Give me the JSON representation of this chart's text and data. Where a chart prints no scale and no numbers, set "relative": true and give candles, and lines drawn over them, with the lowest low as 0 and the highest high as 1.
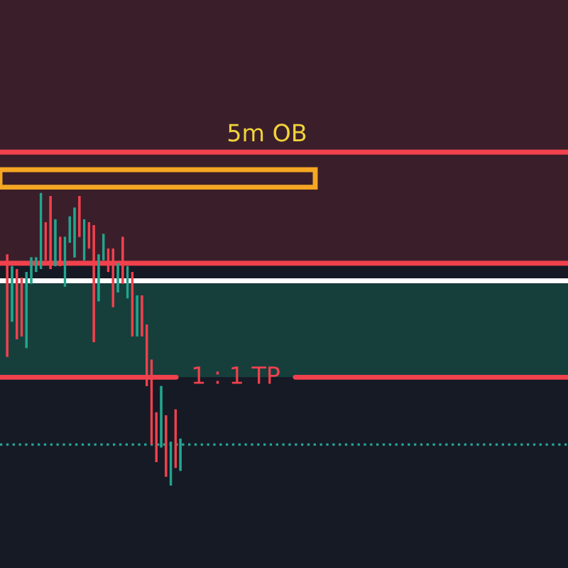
{
  "chart_data": {
    "type": "candlestick",
    "relative": true,
    "categories": [
      null,
      null,
      null,
      null,
      null,
      null,
      null,
      null,
      null,
      null,
      null,
      null,
      null,
      null,
      null,
      null,
      null,
      null,
      null,
      null,
      null,
      null,
      null,
      null,
      null,
      null,
      null,
      null,
      null,
      null,
      null,
      null,
      null,
      null,
      null,
      null,
      null
    ],
    "colors": [
      "#f0414d",
      "#22a68e",
      "#f0414d",
      "#f0414d",
      "#22a68e",
      "#22a68e",
      "#22a68e",
      "#22a68e",
      "#f0414d",
      "#f0414d",
      "#22a68e",
      "#f0414d",
      "#22a68e",
      "#22a68e",
      "#22a68e",
      "#f0414d",
      "#22a68e",
      "#f0414d",
      "#f0414d",
      "#22a68e",
      "#22a68e",
      "#f0414d",
      "#f0414d",
      "#22a68e",
      "#f0414d",
      "#22a68e",
      "#f0414d",
      "#22a68e",
      "#f0414d",
      "#f0414d",
      "#f0414d",
      "#f0414d",
      "#22a68e",
      "#f0414d",
      "#22a68e",
      "#f0414d",
      "#22a68e"
    ],
    "ohlc": [
      [
        0.79,
        0.79,
        0.44,
        0.44
      ],
      [
        0.56,
        0.75,
        0.56,
        0.75
      ],
      [
        0.74,
        0.74,
        0.5,
        0.5
      ],
      [
        0.71,
        0.71,
        0.51,
        0.51
      ],
      [
        0.47,
        0.73,
        0.47,
        0.73
      ],
      [
        0.69,
        0.78,
        0.69,
        0.78
      ],
      [
        0.73,
        0.78,
        0.73,
        0.78
      ],
      [
        0.74,
        1.0,
        0.74,
        1.0
      ],
      [
        0.9,
        0.9,
        0.77,
        0.77
      ],
      [
        0.99,
        0.99,
        0.74,
        0.74
      ],
      [
        0.75,
        0.91,
        0.75,
        0.91
      ],
      [
        0.85,
        0.85,
        0.75,
        0.75
      ],
      [
        0.68,
        0.85,
        0.68,
        0.85
      ],
      [
        0.83,
        0.92,
        0.83,
        0.92
      ],
      [
        0.78,
        0.95,
        0.78,
        0.95
      ],
      [
        0.99,
        0.99,
        0.85,
        0.85
      ],
      [
        0.77,
        0.91,
        0.77,
        0.91
      ],
      [
        0.9,
        0.9,
        0.81,
        0.81
      ],
      [
        0.89,
        0.89,
        0.49,
        0.49
      ],
      [
        0.63,
        0.79,
        0.63,
        0.79
      ],
      [
        0.77,
        0.86,
        0.77,
        0.86
      ],
      [
        0.81,
        0.81,
        0.73,
        0.73
      ],
      [
        0.81,
        0.81,
        0.61,
        0.61
      ],
      [
        0.66,
        0.76,
        0.66,
        0.76
      ],
      [
        0.85,
        0.85,
        0.69,
        0.69
      ],
      [
        0.64,
        0.75,
        0.64,
        0.75
      ],
      [
        0.73,
        0.73,
        0.51,
        0.51
      ],
      [
        0.51,
        0.65,
        0.51,
        0.65
      ],
      [
        0.65,
        0.65,
        0.51,
        0.51
      ],
      [
        0.55,
        0.55,
        0.34,
        0.34
      ],
      [
        0.43,
        0.43,
        0.14,
        0.14
      ],
      [
        0.25,
        0.25,
        0.08,
        0.08
      ],
      [
        0.13,
        0.34,
        0.13,
        0.34
      ],
      [
        0.24,
        0.24,
        0.03,
        0.03
      ],
      [
        0.0,
        0.15,
        0.0,
        0.15
      ],
      [
        0.26,
        0.26,
        0.06,
        0.06
      ],
      [
        0.05,
        0.16,
        0.05,
        0.16
      ]
    ],
    "bands": [
      {
        "axis": "y",
        "from": 0.76,
        "to": 1.66,
        "color": "#3a1f2b"
      },
      {
        "axis": "y",
        "from": 0.37,
        "to": 0.69,
        "color": "#163f3c"
      }
    ],
    "ref_lines": [
      {
        "axis": "y",
        "value": 1.14,
        "color": "#f0414d"
      },
      {
        "axis": "y",
        "value": 0.76,
        "color": "#f0414d"
      },
      {
        "axis": "y",
        "value": 0.7,
        "color": "#ffffff"
      },
      {
        "axis": "y",
        "value": 0.37,
        "color": "#f0414d"
      },
      {
        "axis": "y",
        "value": 0.14,
        "color": "#26a69a",
        "line_style": "dotted"
      }
    ],
    "annotations": [
      {
        "text": "5m OB",
        "y": 1.14
      },
      {
        "text": "1 : 1 TP",
        "y": 0.37
      }
    ]
  }
}
